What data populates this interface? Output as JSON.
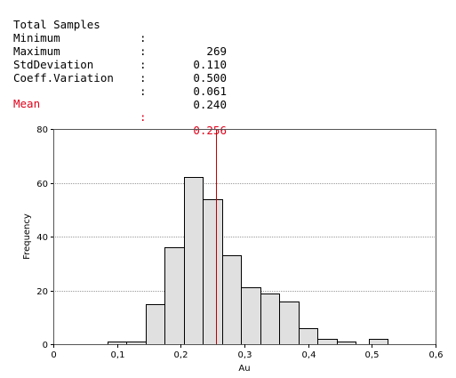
{
  "stats": {
    "rows": [
      {
        "label": "Total Samples",
        "colon": ":",
        "value": "269"
      },
      {
        "label": "Minimum",
        "colon": ":",
        "value": "0.110"
      },
      {
        "label": "Maximum",
        "colon": ":",
        "value": "0.500"
      },
      {
        "label": "StdDeviation",
        "colon": ":",
        "value": "0.061"
      },
      {
        "label": "Coeff.Variation",
        "colon": ":",
        "value": "0.240"
      }
    ],
    "mean": {
      "label": "Mean",
      "colon": ":",
      "value": "0.256"
    },
    "text_color": "#000000",
    "mean_color": "#e0001a"
  },
  "chart_data": {
    "type": "bar",
    "title": "",
    "xlabel": "Au",
    "ylabel": "Frequency",
    "xlim": [
      0,
      0.6
    ],
    "ylim": [
      0,
      80
    ],
    "x_ticks": [
      0,
      0.1,
      0.2,
      0.3,
      0.4,
      0.5,
      0.6
    ],
    "x_tick_labels": [
      "0",
      "0,1",
      "0,2",
      "0,3",
      "0,4",
      "0,5",
      "0,6"
    ],
    "y_ticks": [
      0,
      20,
      40,
      60,
      80
    ],
    "y_tick_labels": [
      "0",
      "20",
      "40",
      "60",
      "80"
    ],
    "grid": true,
    "mean_line": 0.256,
    "bins": [
      {
        "start": 0.085,
        "end": 0.115,
        "count": 1
      },
      {
        "start": 0.115,
        "end": 0.145,
        "count": 1
      },
      {
        "start": 0.145,
        "end": 0.175,
        "count": 15
      },
      {
        "start": 0.175,
        "end": 0.205,
        "count": 36
      },
      {
        "start": 0.205,
        "end": 0.235,
        "count": 62
      },
      {
        "start": 0.235,
        "end": 0.265,
        "count": 54
      },
      {
        "start": 0.265,
        "end": 0.295,
        "count": 33
      },
      {
        "start": 0.295,
        "end": 0.325,
        "count": 21
      },
      {
        "start": 0.325,
        "end": 0.355,
        "count": 19
      },
      {
        "start": 0.355,
        "end": 0.385,
        "count": 16
      },
      {
        "start": 0.385,
        "end": 0.415,
        "count": 6
      },
      {
        "start": 0.415,
        "end": 0.445,
        "count": 2
      },
      {
        "start": 0.445,
        "end": 0.475,
        "count": 1
      },
      {
        "start": 0.495,
        "end": 0.525,
        "count": 2
      }
    ],
    "colors": {
      "bar_fill": "#e0e0e0",
      "bar_stroke": "#000000",
      "grid": "#9a9a9a",
      "mean_line": "#c00000",
      "frame": "#555555"
    }
  }
}
